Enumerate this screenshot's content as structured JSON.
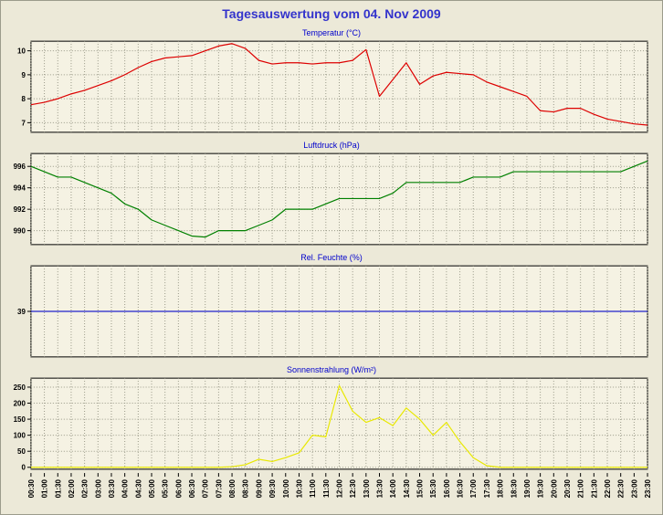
{
  "window": {
    "title": "Tagesauswertung vom 04. Nov 2009"
  },
  "colors": {
    "page_bg": "#ECE9D8",
    "plot_bg": "#F5F2E3",
    "grid": "#999988",
    "axis": "#000000",
    "page_title": "#3333CC",
    "chart_title": "#0000CC"
  },
  "chart_data": {
    "type": "line",
    "grid": true,
    "x_tick_interval_minutes": 30,
    "legend": "none",
    "categories": [
      "00:30",
      "01:00",
      "01:30",
      "02:00",
      "02:30",
      "03:00",
      "03:30",
      "04:00",
      "04:30",
      "05:00",
      "05:30",
      "06:00",
      "06:30",
      "07:00",
      "07:30",
      "08:00",
      "08:30",
      "09:00",
      "09:30",
      "10:00",
      "10:30",
      "11:00",
      "11:30",
      "12:00",
      "12:30",
      "13:00",
      "13:30",
      "14:00",
      "14:30",
      "15:00",
      "15:30",
      "16:00",
      "16:30",
      "17:00",
      "17:30",
      "18:00",
      "18:30",
      "19:00",
      "19:30",
      "20:00",
      "20:30",
      "21:00",
      "21:30",
      "22:00",
      "22:30",
      "23:00",
      "23:30"
    ],
    "panels": [
      {
        "name": "temperature",
        "title": "Temperatur (°C)",
        "color": "#DD0000",
        "y_ticks": [
          10,
          9,
          8,
          7
        ],
        "ylim": [
          6.6,
          10.4
        ],
        "values": [
          7.75,
          7.85,
          8.0,
          8.2,
          8.35,
          8.55,
          8.75,
          9.0,
          9.3,
          9.55,
          9.7,
          9.75,
          9.8,
          10.0,
          10.2,
          10.3,
          10.1,
          9.6,
          9.45,
          9.5,
          9.5,
          9.45,
          9.5,
          9.5,
          9.6,
          10.05,
          8.1,
          8.8,
          9.5,
          8.6,
          8.95,
          9.1,
          9.05,
          9.0,
          8.7,
          8.5,
          8.3,
          8.1,
          7.5,
          7.45,
          7.6,
          7.6,
          7.35,
          7.15,
          7.05,
          6.95,
          6.9
        ]
      },
      {
        "name": "pressure",
        "title": "Luftdruck (hPa)",
        "color": "#008000",
        "y_ticks": [
          996,
          994,
          992,
          990
        ],
        "ylim": [
          988.7,
          997.2
        ],
        "values": [
          996,
          995.5,
          995,
          995,
          994.5,
          994,
          993.5,
          992.5,
          992,
          991,
          990.5,
          990,
          989.5,
          989.4,
          990,
          990,
          990,
          990.5,
          991,
          992,
          992,
          992,
          992.5,
          993,
          993,
          993,
          993,
          993.5,
          994.5,
          994.5,
          994.5,
          994.5,
          994.5,
          995,
          995,
          995,
          995.5,
          995.5,
          995.5,
          995.5,
          995.5,
          995.5,
          995.5,
          995.5,
          995.5,
          996,
          996.5
        ]
      },
      {
        "name": "humidity",
        "title": "Rel. Feuchte (%)",
        "color": "#2222CC",
        "y_ticks": [
          39
        ],
        "ylim": [
          37,
          41
        ],
        "values": [
          39,
          39,
          39,
          39,
          39,
          39,
          39,
          39,
          39,
          39,
          39,
          39,
          39,
          39,
          39,
          39,
          39,
          39,
          39,
          39,
          39,
          39,
          39,
          39,
          39,
          39,
          39,
          39,
          39,
          39,
          39,
          39,
          39,
          39,
          39,
          39,
          39,
          39,
          39,
          39,
          39,
          39,
          39,
          39,
          39,
          39,
          39
        ]
      },
      {
        "name": "radiation",
        "title": "Sonnenstrahlung (W/m²)",
        "color": "#E8E800",
        "y_ticks": [
          250,
          200,
          150,
          100,
          50,
          0
        ],
        "ylim": [
          -6,
          278
        ],
        "values": [
          0,
          0,
          0,
          0,
          0,
          0,
          0,
          0,
          0,
          0,
          0,
          0,
          0,
          0,
          0,
          2,
          8,
          25,
          18,
          30,
          45,
          100,
          95,
          255,
          175,
          140,
          155,
          130,
          185,
          150,
          100,
          140,
          80,
          30,
          5,
          0,
          0,
          0,
          0,
          0,
          0,
          0,
          0,
          0,
          0,
          0,
          0
        ]
      }
    ]
  }
}
